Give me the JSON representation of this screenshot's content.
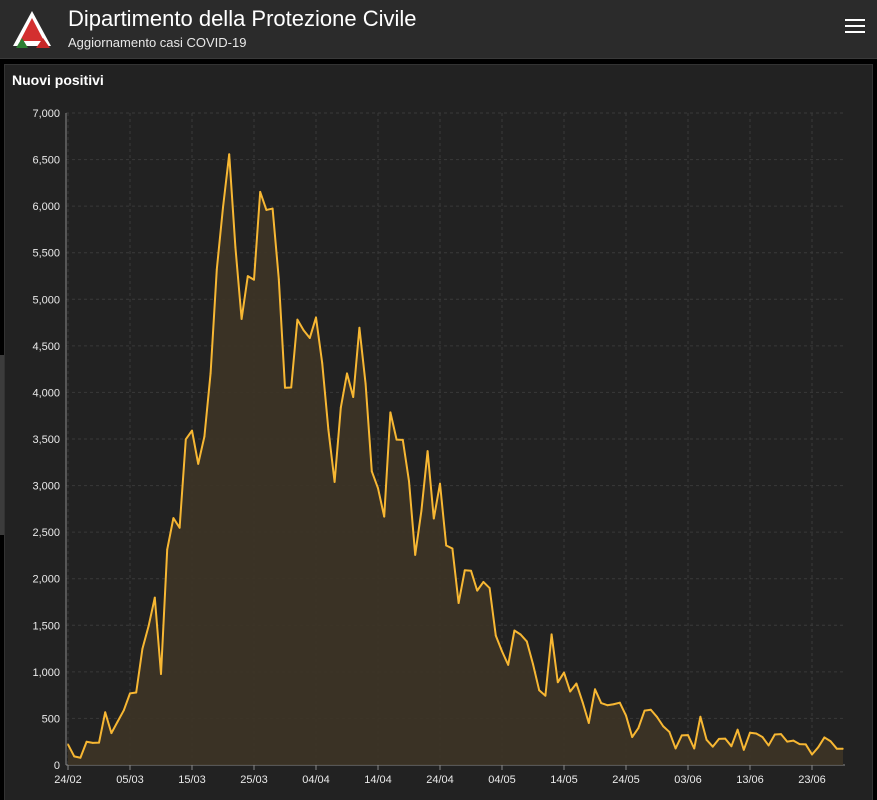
{
  "header": {
    "title": "Dipartimento della Protezione Civile",
    "subtitle": "Aggiornamento casi COVID-19",
    "logo_icon": "protezione-civile-logo-icon",
    "menu_icon": "hamburger-menu-icon"
  },
  "colors": {
    "line": "#f7b733",
    "fill": "#3d3426",
    "background": "#222222",
    "grid": "#3a3a3a"
  },
  "chart_data": {
    "type": "area",
    "title": "Nuovi positivi",
    "xlabel": "",
    "ylabel": "",
    "ylim": [
      0,
      7000
    ],
    "grid": true,
    "yticks": [
      "0",
      "500",
      "1,000",
      "1,500",
      "2,000",
      "2,500",
      "3,000",
      "3,500",
      "4,000",
      "4,500",
      "5,000",
      "5,500",
      "6,000",
      "6,500",
      "7,000"
    ],
    "xticks": [
      "24/02",
      "05/03",
      "15/03",
      "25/03",
      "04/04",
      "14/04",
      "24/04",
      "04/05",
      "14/05",
      "24/05",
      "03/06",
      "13/06",
      "23/06"
    ],
    "series": [
      {
        "values": [
          221,
          93,
          78,
          250,
          238,
          240,
          566,
          342,
          466,
          587,
          769,
          778,
          1247,
          1492,
          1797,
          977,
          2313,
          2651,
          2547,
          3497,
          3590,
          3233,
          3526,
          4207,
          5322,
          5986,
          6557,
          5560,
          4789,
          5249,
          5210,
          6153,
          5959,
          5974,
          5217,
          4050,
          4053,
          4782,
          4668,
          4585,
          4805,
          4316,
          3599,
          3039,
          3836,
          4204,
          3951,
          4694,
          4092,
          3153,
          2972,
          2667,
          3786,
          3493,
          3491,
          3047,
          2256,
          2729,
          3370,
          2646,
          3021,
          2357,
          2324,
          1739,
          2091,
          2086,
          1872,
          1965,
          1900,
          1389,
          1221,
          1075,
          1444,
          1401,
          1327,
          1083,
          802,
          744,
          1402,
          888,
          992,
          789,
          875,
          675,
          451,
          813,
          665,
          642,
          652,
          669,
          531,
          300,
          397,
          584,
          593,
          516,
          416,
          355,
          178,
          318,
          321,
          177,
          518,
          270,
          197,
          280,
          283,
          202,
          379,
          163,
          346,
          338,
          301,
          210,
          328,
          331,
          251,
          262,
          224,
          221,
          113,
          190,
          296,
          255,
          175,
          174
        ]
      }
    ]
  }
}
